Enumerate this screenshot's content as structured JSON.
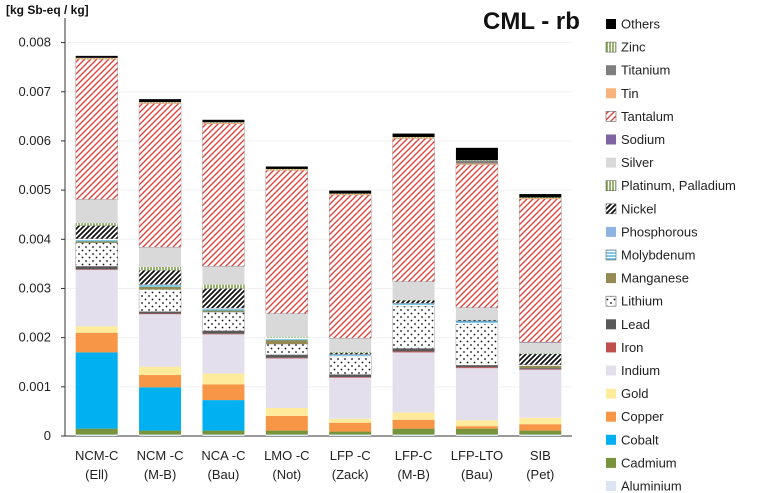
{
  "chart_data": {
    "type": "bar",
    "stacked": true,
    "title": "CML - rb",
    "unit_label": "[kg Sb-eq / kg]",
    "ylim": [
      0,
      0.0085
    ],
    "yticks": [
      0,
      0.001,
      0.002,
      0.003,
      0.004,
      0.005,
      0.006,
      0.007,
      0.008
    ],
    "ytick_labels": [
      "0",
      "0.001",
      "0.002",
      "0.003",
      "0.004",
      "0.005",
      "0.006",
      "0.007",
      "0.008"
    ],
    "categories": [
      "NCM-C (Ell)",
      "NCM -C (M-B)",
      "NCA -C (Bau)",
      "LMO -C (Not)",
      "LFP -C (Zack)",
      "LFP-C (M-B)",
      "LFP-LTO (Bau)",
      "SIB (Pet)"
    ],
    "category_lines": [
      [
        "NCM-C",
        "(Ell)"
      ],
      [
        "NCM -C",
        "(M-B)"
      ],
      [
        "NCA -C",
        "(Bau)"
      ],
      [
        "LMO -C",
        "(Not)"
      ],
      [
        "LFP -C",
        "(Zack)"
      ],
      [
        "LFP-C",
        "(M-B)"
      ],
      [
        "LFP-LTO",
        "(Bau)"
      ],
      [
        "SIB",
        "(Pet)"
      ]
    ],
    "legend_position": "right",
    "series": [
      {
        "name": "Aluminium",
        "color": "#dce6f2",
        "pattern": "solid",
        "values": [
          3e-05,
          3e-05,
          3e-05,
          3e-05,
          3e-05,
          3e-05,
          3e-05,
          3e-05
        ]
      },
      {
        "name": "Cadmium",
        "color": "#77933c",
        "pattern": "solid",
        "values": [
          0.00012,
          8e-05,
          8e-05,
          8e-05,
          6e-05,
          0.00012,
          0.00012,
          8e-05
        ]
      },
      {
        "name": "Cobalt",
        "color": "#00b0f0",
        "pattern": "solid",
        "values": [
          0.00155,
          0.00088,
          0.00062,
          0,
          0,
          0,
          0,
          0
        ]
      },
      {
        "name": "Copper",
        "color": "#f79646",
        "pattern": "solid",
        "values": [
          0.0004,
          0.00025,
          0.00032,
          0.0003,
          0.00018,
          0.00018,
          5e-05,
          0.00013
        ]
      },
      {
        "name": "Gold",
        "color": "#ffeb9c",
        "pattern": "solid",
        "values": [
          0.00013,
          0.00017,
          0.00022,
          0.00016,
          8e-05,
          0.00015,
          0.00012,
          0.00013
        ]
      },
      {
        "name": "Indium",
        "color": "#e4dfec",
        "pattern": "solid",
        "values": [
          0.00115,
          0.00107,
          0.0008,
          0.00101,
          0.00084,
          0.00122,
          0.00106,
          0.00098
        ]
      },
      {
        "name": "Iron",
        "color": "#c0504d",
        "pattern": "solid",
        "values": [
          1e-05,
          1e-05,
          1e-05,
          1e-05,
          1e-05,
          2e-05,
          2e-05,
          1e-05
        ]
      },
      {
        "name": "Lead",
        "color": "#595959",
        "pattern": "solid",
        "values": [
          6e-05,
          4e-05,
          6e-05,
          6e-05,
          5e-05,
          6e-05,
          4e-05,
          2e-05
        ]
      },
      {
        "name": "Lithium",
        "color": "#ffffff",
        "pattern": "dots",
        "values": [
          0.00048,
          0.00045,
          0.00038,
          0.00022,
          0.00037,
          0.00086,
          0.00084,
          0
        ]
      },
      {
        "name": "Manganese",
        "color": "#948a54",
        "pattern": "solid",
        "values": [
          3e-05,
          5e-05,
          3e-05,
          8e-05,
          0,
          0,
          0,
          5e-05
        ]
      },
      {
        "name": "Molybdenum",
        "color": "#4bacc6",
        "pattern": "hlines",
        "values": [
          5e-05,
          5e-05,
          5e-05,
          5e-05,
          3e-05,
          5e-05,
          5e-05,
          2e-05
        ]
      },
      {
        "name": "Phosphorous",
        "color": "#8db3e2",
        "pattern": "solid",
        "values": [
          0,
          0,
          0,
          0,
          1e-05,
          1e-05,
          1e-05,
          0
        ]
      },
      {
        "name": "Nickel",
        "color": "#1a1a1a",
        "pattern": "diag",
        "values": [
          0.00027,
          0.00029,
          0.0004,
          0,
          3e-05,
          6e-05,
          2e-05,
          0.00022
        ]
      },
      {
        "name": "Platinum, Palladium",
        "color": "#9bbb59",
        "pattern": "vlines",
        "values": [
          5e-05,
          7e-05,
          8e-05,
          2e-05,
          2e-05,
          1e-05,
          0,
          1e-05
        ]
      },
      {
        "name": "Silver",
        "color": "#d9d9d9",
        "pattern": "solid",
        "values": [
          0.00048,
          0.0004,
          0.00037,
          0.00047,
          0.00028,
          0.00037,
          0.00025,
          0.00022
        ]
      },
      {
        "name": "Sodium",
        "color": "#8064a2",
        "pattern": "solid",
        "values": [
          0,
          0,
          0,
          0,
          0,
          0,
          0,
          1e-05
        ]
      },
      {
        "name": "Tantalum",
        "color": "#ff8080",
        "pattern": "hatch",
        "values": [
          0.00285,
          0.00292,
          0.0029,
          0.00291,
          0.00291,
          0.00291,
          0.00291,
          0.00291
        ]
      },
      {
        "name": "Tin",
        "color": "#fab27b",
        "pattern": "solid",
        "values": [
          2e-05,
          2e-05,
          2e-05,
          2e-05,
          2e-05,
          2e-05,
          2e-05,
          2e-05
        ]
      },
      {
        "name": "Titanium",
        "color": "#7f7f7f",
        "pattern": "solid",
        "values": [
          0,
          0,
          0,
          0,
          0,
          0,
          6e-05,
          0
        ]
      },
      {
        "name": "Zinc",
        "color": "#404040",
        "pattern": "vlines",
        "values": [
          1e-05,
          1e-05,
          1e-05,
          1e-05,
          1e-05,
          1e-05,
          1e-05,
          1e-05
        ]
      },
      {
        "name": "Others",
        "color": "#000000",
        "pattern": "solid",
        "values": [
          4e-05,
          6e-05,
          5e-05,
          5e-05,
          6e-05,
          7e-05,
          0.00025,
          7e-05
        ]
      }
    ]
  }
}
